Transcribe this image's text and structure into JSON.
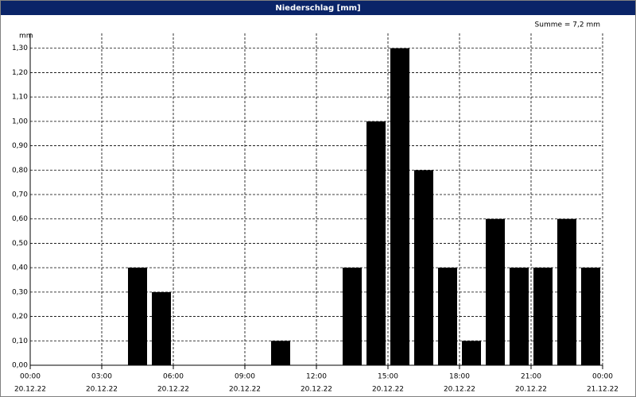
{
  "chart_data": {
    "type": "bar",
    "title": "Niederschlag [mm]",
    "y_label": "mm",
    "annotation": "Summe = 7,2 mm",
    "x": [
      4.5,
      5.5,
      10.5,
      13.5,
      14.5,
      15.5,
      16.5,
      17.5,
      18.5,
      19.5,
      20.5,
      21.5,
      22.5,
      23.5
    ],
    "values": [
      0.4,
      0.3,
      0.1,
      0.4,
      1.0,
      1.3,
      0.8,
      0.4,
      0.1,
      0.6,
      0.4,
      0.4,
      0.6,
      0.4
    ],
    "color": "#000000",
    "grid": true,
    "xlim": [
      0,
      24
    ],
    "xticks": [
      {
        "value": 0,
        "label": "00:00",
        "date": "20.12.22"
      },
      {
        "value": 3,
        "label": "03:00",
        "date": "20.12.22"
      },
      {
        "value": 6,
        "label": "06:00",
        "date": "20.12.22"
      },
      {
        "value": 9,
        "label": "09:00",
        "date": "20.12.22"
      },
      {
        "value": 12,
        "label": "12:00",
        "date": "20.12.22"
      },
      {
        "value": 15,
        "label": "15:00",
        "date": "20.12.22"
      },
      {
        "value": 18,
        "label": "18:00",
        "date": "20.12.22"
      },
      {
        "value": 21,
        "label": "21:00",
        "date": "20.12.22"
      },
      {
        "value": 24,
        "label": "00:00",
        "date": "21.12.22"
      }
    ],
    "ylim": [
      0,
      1.4
    ],
    "yticks": [
      {
        "value": 0,
        "label": "0,00"
      },
      {
        "value": 0.1,
        "label": "0,10"
      },
      {
        "value": 0.2,
        "label": "0,20"
      },
      {
        "value": 0.3,
        "label": "0,30"
      },
      {
        "value": 0.4,
        "label": "0,40"
      },
      {
        "value": 0.5,
        "label": "0,50"
      },
      {
        "value": 0.6,
        "label": "0,60"
      },
      {
        "value": 0.7,
        "label": "0,70"
      },
      {
        "value": 0.8,
        "label": "0,80"
      },
      {
        "value": 0.9,
        "label": "0,90"
      },
      {
        "value": 1.0,
        "label": "1,00"
      },
      {
        "value": 1.1,
        "label": "1,10"
      },
      {
        "value": 1.2,
        "label": "1,20"
      },
      {
        "value": 1.3,
        "label": "1,30"
      }
    ]
  }
}
